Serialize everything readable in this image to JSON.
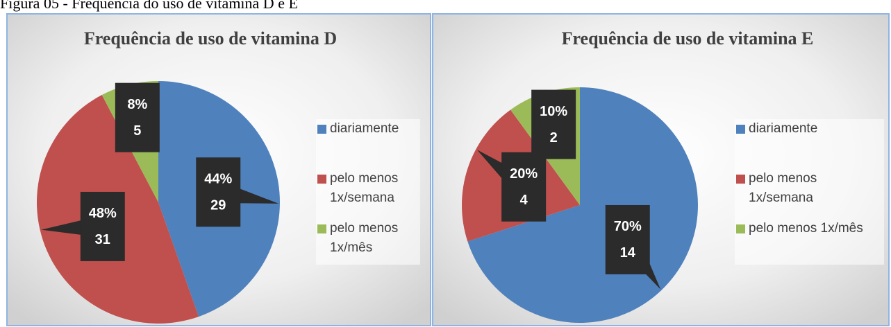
{
  "caption": "Figura 05 - Frequência do uso de vitamina D e E",
  "chart_data": [
    {
      "type": "pie",
      "title": "Frequência de uso de vitamina D",
      "categories": [
        "diariamente",
        "pelo menos 1x/semana",
        "pelo menos 1x/mês"
      ],
      "values": [
        29,
        31,
        5
      ],
      "percent_labels": [
        "44%",
        "48%",
        "8%"
      ],
      "colors": [
        "#4f81bd",
        "#c0504d",
        "#9bbb59"
      ],
      "legend": "right"
    },
    {
      "type": "pie",
      "title": "Frequência de uso de vitamina E",
      "categories": [
        "diariamente",
        "pelo menos 1x/semana",
        "pelo menos 1x/mês"
      ],
      "values": [
        14,
        4,
        2
      ],
      "percent_labels": [
        "70%",
        "20%",
        "10%"
      ],
      "colors": [
        "#4f81bd",
        "#c0504d",
        "#9bbb59"
      ],
      "legend": "right"
    }
  ]
}
